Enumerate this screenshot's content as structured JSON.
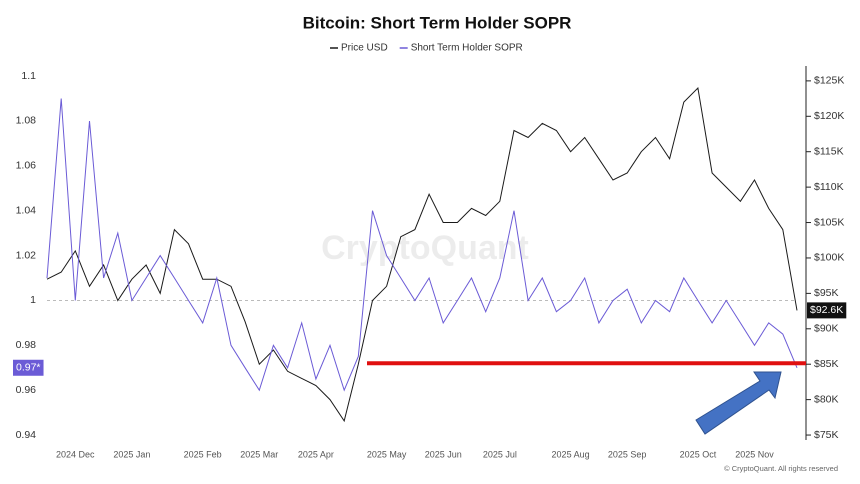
{
  "chart_data": {
    "type": "line",
    "title": "Bitcoin: Short Term Holder SOPR",
    "watermark": "CryptoQuant",
    "footer": "© CryptoQuant. All rights reserved",
    "categories": [
      null,
      null,
      "2024 Dec",
      null,
      null,
      null,
      "2025 Jan",
      null,
      null,
      null,
      null,
      "2025 Feb",
      null,
      null,
      null,
      "2025 Mar",
      null,
      null,
      null,
      "2025 Apr",
      null,
      null,
      null,
      null,
      "2025 May",
      null,
      null,
      null,
      "2025 Jun",
      null,
      null,
      null,
      "2025 Jul",
      null,
      null,
      null,
      null,
      "2025 Aug",
      null,
      null,
      null,
      "2025 Sep",
      null,
      null,
      null,
      null,
      "2025 Oct",
      null,
      null,
      null,
      "2025 Nov",
      null,
      null,
      null
    ],
    "series": [
      {
        "name": "Price USD",
        "color": "#1a1a1a",
        "axis": "y2",
        "values": [
          97000,
          98000,
          101000,
          96000,
          99000,
          94000,
          97000,
          99000,
          95000,
          104000,
          102000,
          97000,
          97000,
          96000,
          91000,
          85000,
          87000,
          84000,
          83000,
          82000,
          80000,
          77000,
          85000,
          94000,
          96000,
          103000,
          104000,
          109000,
          105000,
          105000,
          107000,
          106000,
          108000,
          118000,
          117000,
          119000,
          118000,
          115000,
          117000,
          114000,
          111000,
          112000,
          115000,
          117000,
          114000,
          122000,
          124000,
          112000,
          110000,
          108000,
          111000,
          107000,
          104000,
          92600
        ],
        "value_labels": [
          null,
          null,
          null,
          null,
          null,
          null,
          null,
          null,
          null,
          null,
          null,
          null,
          null,
          null,
          null,
          null,
          null,
          null,
          null,
          null,
          null,
          null,
          null,
          null,
          null,
          null,
          null,
          null,
          null,
          null,
          null,
          null,
          null,
          null,
          null,
          null,
          null,
          null,
          null,
          null,
          null,
          null,
          null,
          null,
          null,
          null,
          null,
          null,
          null,
          null,
          null,
          null,
          null,
          "$92.6K"
        ]
      },
      {
        "name": "Short Term Holder SOPR",
        "color": "#6b5bd6",
        "values": [
          1.01,
          1.09,
          1.0,
          1.08,
          1.01,
          1.03,
          1.0,
          1.01,
          1.02,
          1.01,
          1.0,
          0.99,
          1.01,
          0.98,
          0.97,
          0.96,
          0.98,
          0.97,
          0.99,
          0.965,
          0.98,
          0.96,
          0.975,
          1.04,
          1.02,
          1.01,
          1.0,
          1.01,
          0.99,
          1.0,
          1.01,
          0.995,
          1.01,
          1.04,
          1.0,
          1.01,
          0.995,
          1.0,
          1.01,
          0.99,
          1.0,
          1.005,
          0.99,
          1.0,
          0.995,
          1.01,
          1.0,
          0.99,
          1.0,
          0.99,
          0.98,
          0.99,
          0.985,
          0.97
        ],
        "value_labels": [
          null,
          null,
          null,
          null,
          null,
          null,
          null,
          null,
          null,
          null,
          null,
          null,
          null,
          null,
          null,
          null,
          null,
          null,
          null,
          null,
          null,
          null,
          null,
          null,
          null,
          null,
          null,
          null,
          null,
          null,
          null,
          null,
          null,
          null,
          null,
          null,
          null,
          null,
          null,
          null,
          null,
          null,
          null,
          null,
          null,
          null,
          null,
          null,
          null,
          null,
          null,
          null,
          null,
          "0.97*"
        ]
      }
    ],
    "ylim": [
      0.9378,
      1.1045
    ],
    "yticks": [
      0.94,
      0.96,
      0.98,
      1,
      1.02,
      1.04,
      1.06,
      1.08,
      1.1
    ],
    "y2lim": [
      74300,
      127100
    ],
    "y2ticks": [
      {
        "value": 75000,
        "label": "$75K"
      },
      {
        "value": 80000,
        "label": "$80K"
      },
      {
        "value": 85000,
        "label": "$85K"
      },
      {
        "value": 90000,
        "label": "$90K"
      },
      {
        "value": 95000,
        "label": "$95K"
      },
      {
        "value": 100000,
        "label": "$100K"
      },
      {
        "value": 105000,
        "label": "$105K"
      },
      {
        "value": 110000,
        "label": "$110K"
      },
      {
        "value": 115000,
        "label": "$115K"
      },
      {
        "value": 120000,
        "label": "$120K"
      },
      {
        "value": 125000,
        "label": "$125K"
      }
    ],
    "baseline": 1,
    "reference_line": {
      "value": 0.972,
      "color": "#e01010"
    }
  }
}
